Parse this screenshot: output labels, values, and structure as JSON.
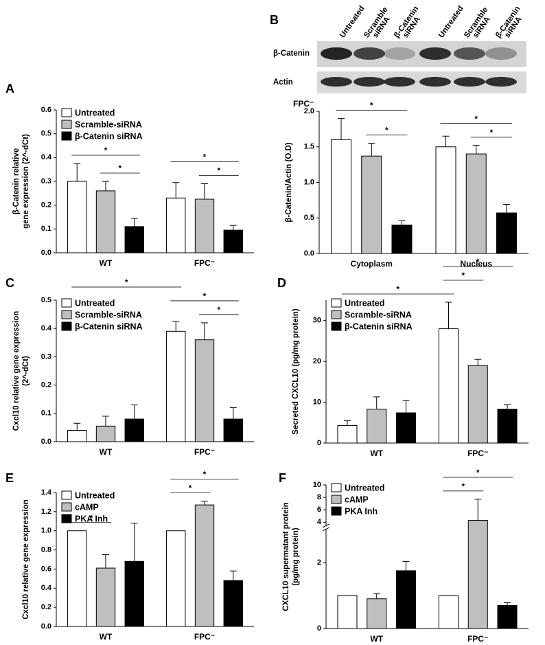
{
  "blot": {
    "lanes": [
      [
        "Untreated"
      ],
      [
        "Scramble",
        "siRNA"
      ],
      [
        "β-Catenin",
        "siRNA"
      ],
      [
        "Untreated"
      ],
      [
        "Scramble",
        "siRNA"
      ],
      [
        "β-Catenin",
        "siRNA"
      ]
    ],
    "rows": [
      "β-Catenin",
      "Actin"
    ]
  },
  "chart_data": [
    {
      "type": "bar",
      "panel": "A",
      "ylabel": [
        "β-Catenin relative",
        "gene expression (2^-dCt)"
      ],
      "categories": [
        "WT",
        "FPC⁻"
      ],
      "legend": "upper left",
      "series": [
        {
          "name": "Untreated",
          "color": "#ffffff",
          "values": [
            0.3,
            0.23
          ],
          "errors": [
            0.075,
            0.065
          ]
        },
        {
          "name": "Scramble-siRNA",
          "color": "#bfbfbf",
          "values": [
            0.26,
            0.225
          ],
          "errors": [
            0.04,
            0.065
          ]
        },
        {
          "name": "β-Catenin siRNA",
          "color": "#000000",
          "values": [
            0.11,
            0.095
          ],
          "errors": [
            0.035,
            0.02
          ]
        }
      ],
      "ylim": [
        0,
        0.6
      ],
      "yticks": [
        {
          "value": 0,
          "label": "0.0"
        },
        0.1,
        0.2,
        0.3,
        0.4,
        0.5,
        0.6
      ],
      "significance": [
        {
          "label": "*",
          "from": [
            0,
            1
          ],
          "to": [
            0,
            2
          ]
        },
        {
          "label": "*",
          "from": [
            0,
            0
          ],
          "to": [
            0,
            2
          ]
        },
        {
          "label": "*",
          "from": [
            1,
            1
          ],
          "to": [
            1,
            2
          ]
        },
        {
          "label": "*",
          "from": [
            1,
            0
          ],
          "to": [
            1,
            2
          ]
        }
      ]
    },
    {
      "type": "bar",
      "panel": "B",
      "ylabel": [
        "β-Catenin/Actin (O.D)"
      ],
      "categories": [
        "Cytoplasm",
        "Nucleus"
      ],
      "annotation": "FPC⁻",
      "series": [
        {
          "color": "#ffffff",
          "values": [
            1.6,
            1.5
          ],
          "errors": [
            0.3,
            0.15
          ]
        },
        {
          "color": "#bfbfbf",
          "values": [
            1.37,
            1.4
          ],
          "errors": [
            0.18,
            0.12
          ]
        },
        {
          "color": "#000000",
          "values": [
            0.4,
            0.57
          ],
          "errors": [
            0.06,
            0.12
          ]
        }
      ],
      "ylim": [
        0,
        2
      ],
      "yticks": [
        {
          "value": 0,
          "label": "0.0"
        },
        0.5,
        {
          "value": 1,
          "label": "1.0"
        },
        1.5,
        {
          "value": 2,
          "label": "2.0"
        }
      ],
      "significance": [
        {
          "label": "*",
          "from": [
            0,
            1
          ],
          "to": [
            0,
            2
          ]
        },
        {
          "label": "*",
          "from": [
            0,
            0
          ],
          "to": [
            0,
            2
          ]
        },
        {
          "label": "*",
          "from": [
            1,
            1
          ],
          "to": [
            1,
            2
          ]
        },
        {
          "label": "*",
          "from": [
            1,
            0
          ],
          "to": [
            1,
            2
          ]
        }
      ]
    },
    {
      "type": "bar",
      "panel": "C",
      "ylabel": [
        "Cxcl10 relative gene expression",
        "(2^-dCt)"
      ],
      "categories": [
        "WT",
        "FPC⁻"
      ],
      "legend": "upper left",
      "series": [
        {
          "name": "Untreated",
          "color": "#ffffff",
          "values": [
            0.04,
            0.39
          ],
          "errors": [
            0.025,
            0.035
          ]
        },
        {
          "name": "Scramble-siRNA",
          "color": "#bfbfbf",
          "values": [
            0.055,
            0.36
          ],
          "errors": [
            0.035,
            0.06
          ]
        },
        {
          "name": "β-Catenin siRNA",
          "color": "#000000",
          "values": [
            0.08,
            0.08
          ],
          "errors": [
            0.05,
            0.04
          ]
        }
      ],
      "ylim": [
        0,
        0.5
      ],
      "yticks": [
        {
          "value": 0,
          "label": "0.0"
        },
        0.1,
        0.2,
        0.3,
        0.4,
        0.5
      ],
      "significance": [
        {
          "label": "*",
          "from": [
            1,
            1
          ],
          "to": [
            1,
            2
          ]
        },
        {
          "label": "*",
          "from": [
            1,
            0
          ],
          "to": [
            1,
            2
          ]
        },
        {
          "label": "*",
          "from": [
            0,
            0
          ],
          "to": [
            1,
            0
          ]
        }
      ]
    },
    {
      "type": "bar",
      "panel": "D",
      "ylabel": [
        "Secreted CXCL10 (pg/mg protein)"
      ],
      "categories": [
        "WT",
        "FPC⁻"
      ],
      "legend": "upper left",
      "series": [
        {
          "name": "Untreated",
          "color": "#ffffff",
          "values": [
            4.3,
            28
          ],
          "errors": [
            1.2,
            6.5
          ]
        },
        {
          "name": "Scramble-siRNA",
          "color": "#bfbfbf",
          "values": [
            8.3,
            19
          ],
          "errors": [
            3,
            1.5
          ]
        },
        {
          "name": "β-Catenin siRNA",
          "color": "#000000",
          "values": [
            7.4,
            8.3
          ],
          "errors": [
            3,
            1.1
          ]
        }
      ],
      "ylim": [
        0,
        35
      ],
      "yticks": [
        0,
        10,
        20,
        30
      ],
      "significance": [
        {
          "label": "*",
          "from": [
            0,
            0
          ],
          "to": [
            1,
            0
          ]
        },
        {
          "label": "*",
          "from": [
            1,
            0
          ],
          "to": [
            1,
            1
          ]
        },
        {
          "label": "*",
          "from": [
            1,
            0
          ],
          "to": [
            1,
            2
          ]
        }
      ]
    },
    {
      "type": "bar",
      "panel": "E",
      "ylabel": [
        "Cxcl10 relative gene expression"
      ],
      "categories": [
        "WT",
        "FPC⁻"
      ],
      "legend": "upper left",
      "series": [
        {
          "name": "Untreated",
          "color": "#ffffff",
          "values": [
            1.0,
            1.0
          ],
          "errors": [
            0,
            0
          ]
        },
        {
          "name": "cAMP",
          "color": "#bfbfbf",
          "values": [
            0.61,
            1.27
          ],
          "errors": [
            0.14,
            0.04
          ]
        },
        {
          "name": "PKA Inh",
          "color": "#000000",
          "values": [
            0.68,
            0.48
          ],
          "errors": [
            0.4,
            0.1
          ]
        }
      ],
      "ylim": [
        0,
        1.4
      ],
      "yticks": [
        {
          "value": 0,
          "label": "0.0"
        },
        0.2,
        0.4,
        0.6,
        0.8,
        {
          "value": 1,
          "label": "1.0"
        },
        1.2,
        1.4
      ],
      "significance": [
        {
          "label": "*",
          "from": [
            0,
            0
          ],
          "to": [
            0,
            1
          ]
        },
        {
          "label": "*",
          "from": [
            1,
            0
          ],
          "to": [
            1,
            1
          ]
        },
        {
          "label": "*",
          "from": [
            1,
            0
          ],
          "to": [
            1,
            2
          ]
        }
      ]
    },
    {
      "type": "bar",
      "panel": "F",
      "ylabel": [
        "CXCL10 supermatant protein",
        "(pg/mg protein)"
      ],
      "categories": [
        "WT",
        "FPC⁻"
      ],
      "legend": "upper left",
      "series": [
        {
          "name": "Untreated",
          "color": "#ffffff",
          "values": [
            1.0,
            1.0
          ],
          "errors": [
            0,
            0
          ]
        },
        {
          "name": "cAMP",
          "color": "#bfbfbf",
          "values": [
            0.9,
            4.3
          ],
          "errors": [
            0.15,
            3.4
          ]
        },
        {
          "name": "PKA Inh",
          "color": "#000000",
          "values": [
            1.75,
            0.7
          ],
          "errors": [
            0.28,
            0.08
          ]
        }
      ],
      "ylim": [
        0,
        10
      ],
      "ybreak": [
        3,
        3.5
      ],
      "yticks": [
        0,
        2,
        4,
        6,
        8,
        10
      ],
      "significance": [
        {
          "label": "*",
          "from": [
            1,
            0
          ],
          "to": [
            1,
            1
          ]
        },
        {
          "label": "*",
          "from": [
            1,
            0
          ],
          "to": [
            1,
            2
          ]
        }
      ]
    }
  ]
}
